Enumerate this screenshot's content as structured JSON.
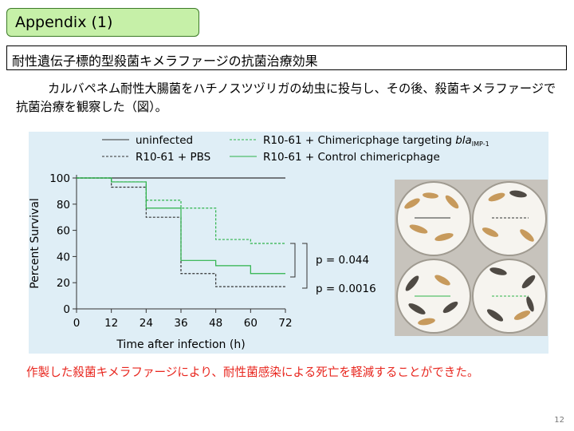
{
  "slide": {
    "title": "Appendix (1)",
    "subtitle": "耐性遺伝子標的型殺菌キメラファージの抗菌治療効果",
    "body": "カルバペネム耐性大腸菌をハチノスツヅリガの幼虫に投与し、その後、殺菌キメラファージで抗菌治療を観察した（図）。",
    "conclusion": "作製した殺菌キメラファージにより、耐性菌感染による死亡を軽減することができた。",
    "page_number": "12"
  },
  "legend": {
    "uninfected": "uninfected",
    "pbs": "R10-61 + PBS",
    "targeting_prefix": "R10-61 + Chimericphage targeting ",
    "targeting_gene": "bla",
    "targeting_sub": "IMP-1",
    "control": "R10-61 + Control chimericphage"
  },
  "annotations": {
    "p1": "p = 0.044",
    "p2": "p = 0.0016"
  },
  "colors": {
    "title_bg": "#c6f0a8",
    "figure_bg": "#dfeef6",
    "conclusion": "#e8261e",
    "uninfected": "#333333",
    "pbs": "#333333",
    "targeting": "#2db34a",
    "control": "#2db34a"
  },
  "chart_data": {
    "type": "line",
    "xlabel": "Time after infection (h)",
    "ylabel": "Percent Survival",
    "xlim": [
      0,
      72
    ],
    "ylim": [
      0,
      100
    ],
    "xticks": [
      0,
      12,
      24,
      36,
      48,
      60,
      72
    ],
    "yticks": [
      0,
      20,
      40,
      60,
      80,
      100
    ],
    "series": [
      {
        "name": "uninfected",
        "style": "solid",
        "color": "#333333",
        "x": [
          0,
          72
        ],
        "y": [
          100,
          100
        ]
      },
      {
        "name": "R10-61 + PBS",
        "style": "dashed",
        "color": "#333333",
        "x": [
          0,
          12,
          12,
          24,
          24,
          36,
          36,
          48,
          48,
          72
        ],
        "y": [
          100,
          100,
          93,
          93,
          70,
          70,
          27,
          27,
          17,
          17
        ]
      },
      {
        "name": "R10-61 + Chimericphage targeting blaIMP-1",
        "style": "dashed",
        "color": "#2db34a",
        "x": [
          0,
          12,
          12,
          24,
          24,
          36,
          36,
          48,
          48,
          60,
          60,
          72
        ],
        "y": [
          100,
          100,
          97,
          97,
          83,
          83,
          77,
          77,
          53,
          53,
          50,
          50
        ]
      },
      {
        "name": "R10-61 + Control chimericphage",
        "style": "solid",
        "color": "#2db34a",
        "x": [
          0,
          12,
          12,
          24,
          24,
          36,
          36,
          48,
          48,
          60,
          60,
          72
        ],
        "y": [
          100,
          100,
          97,
          97,
          77,
          77,
          37,
          37,
          33,
          33,
          27,
          27
        ]
      }
    ]
  }
}
